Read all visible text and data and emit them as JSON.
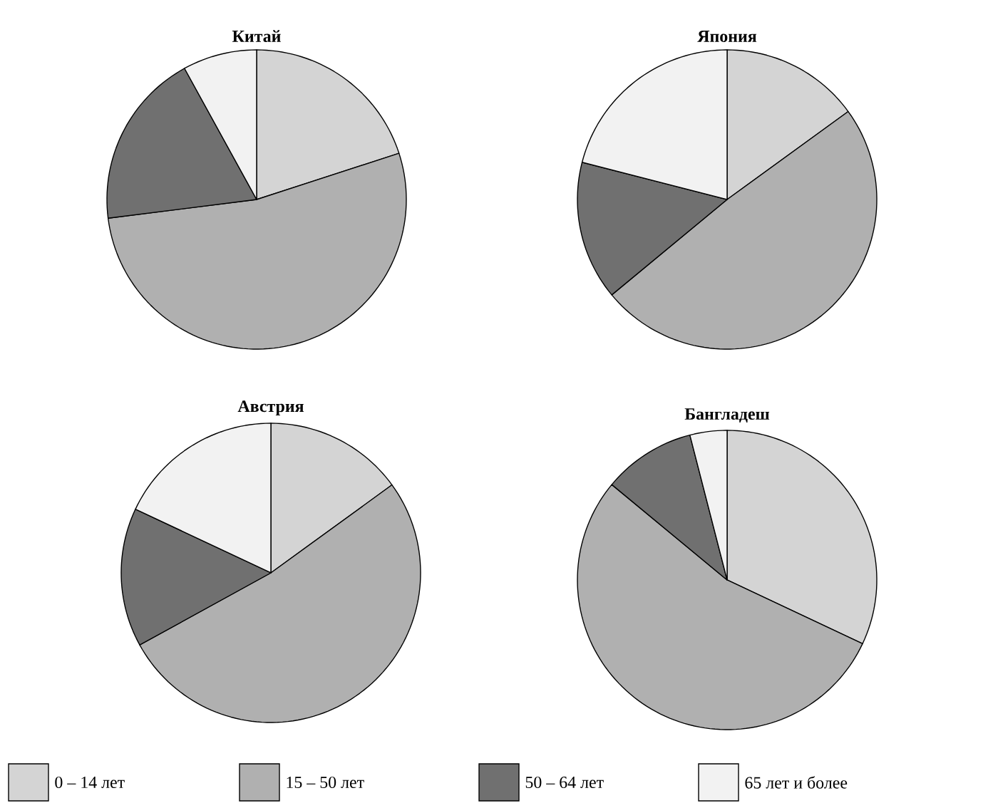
{
  "chart_data": [
    {
      "type": "pie",
      "title": "Китай",
      "categories": [
        null,
        null,
        null,
        null
      ],
      "values": [
        20,
        53,
        19,
        8
      ],
      "colors": [
        "#d4d4d4",
        "#b0b0b0",
        "#707070",
        "#f2f2f2"
      ]
    },
    {
      "type": "pie",
      "title": "Япония",
      "categories": [
        null,
        null,
        null,
        null
      ],
      "values": [
        15,
        49,
        15,
        21
      ],
      "colors": [
        "#d4d4d4",
        "#b0b0b0",
        "#707070",
        "#f2f2f2"
      ]
    },
    {
      "type": "pie",
      "title": "Австрия",
      "categories": [
        null,
        null,
        null,
        null
      ],
      "values": [
        15,
        52,
        15,
        18
      ],
      "colors": [
        "#d4d4d4",
        "#b0b0b0",
        "#707070",
        "#f2f2f2"
      ]
    },
    {
      "type": "pie",
      "title": "Бангладеш",
      "categories": [
        "0 – 14 лет",
        "15 – 50 лет",
        "50 – 64 лет",
        "65 лет и более"
      ],
      "values": [
        32,
        54,
        10,
        4
      ],
      "colors": [
        "#d4d4d4",
        "#b0b0b0",
        "#707070",
        "#f2f2f2"
      ],
      "legend": "bottom"
    }
  ]
}
